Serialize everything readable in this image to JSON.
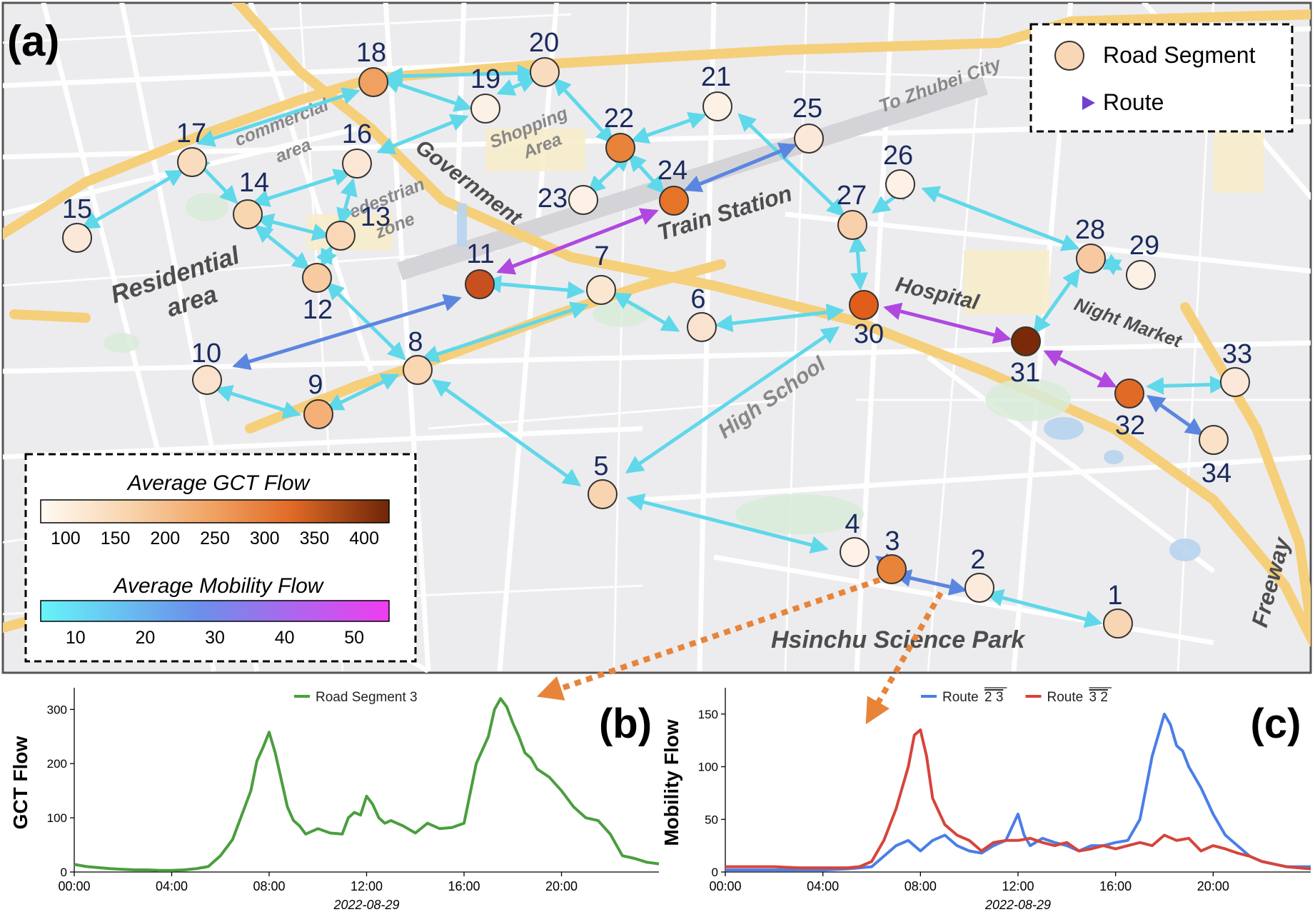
{
  "panel_a": {
    "label": "(a)",
    "legend": {
      "segment_label": "Road Segment",
      "route_label": "Route"
    },
    "area_labels": {
      "commercial_1": "commercial",
      "commercial_2": "area",
      "shopping_1": "Shopping",
      "shopping_2": "Area",
      "government": "Government",
      "train_station": "Train Station",
      "to_zhubei": "To Zhubei City",
      "residential_1": "Residential",
      "residential_2": "area",
      "pedestrian_1": "Pedestrian",
      "pedestrian_2": "zone",
      "hospital": "Hospital",
      "night_market": "Night Market",
      "high_school": "High School",
      "science_park": "Hsinchu Science Park",
      "freeway": "Freeway"
    },
    "gct_scale": {
      "title": "Average GCT Flow",
      "ticks": [
        "100",
        "150",
        "200",
        "250",
        "300",
        "350",
        "400"
      ]
    },
    "mobility_scale": {
      "title": "Average Mobility Flow",
      "ticks": [
        "10",
        "20",
        "30",
        "40",
        "50"
      ]
    },
    "colors": {
      "seg_low": "#fbe7d2",
      "seg_mid": "#f29c5c",
      "seg_high": "#e06a2a",
      "seg_max": "#7a2a08",
      "route_low": "#5ee0f0",
      "route_mid": "#6a8ee8",
      "route_high": "#c050e8"
    }
  },
  "chart_data": [
    {
      "id": "b",
      "type": "line",
      "label": "(b)",
      "ylabel": "GCT Flow",
      "xlabel": "2022-08-29",
      "x_ticks": [
        "00:00",
        "04:00",
        "08:00",
        "12:00",
        "16:00",
        "20:00"
      ],
      "y_ticks": [
        "0",
        "100",
        "200",
        "300"
      ],
      "xlim": [
        0,
        24
      ],
      "ylim": [
        0,
        340
      ],
      "series": [
        {
          "name": "Road Segment 3",
          "color": "#4a9e3e",
          "x": [
            0,
            0.5,
            1,
            1.5,
            2,
            2.5,
            3,
            3.5,
            4,
            4.5,
            5,
            5.5,
            6,
            6.5,
            7,
            7.25,
            7.5,
            7.75,
            8,
            8.25,
            8.5,
            8.75,
            9,
            9.25,
            9.5,
            9.75,
            10,
            10.5,
            11,
            11.25,
            11.5,
            11.75,
            12,
            12.25,
            12.5,
            12.75,
            13,
            13.5,
            14,
            14.5,
            15,
            15.5,
            16,
            16.5,
            17,
            17.25,
            17.5,
            17.75,
            18,
            18.25,
            18.5,
            18.75,
            19,
            19.5,
            20,
            20.5,
            21,
            21.5,
            22,
            22.5,
            23,
            23.5,
            24
          ],
          "y": [
            14,
            10,
            8,
            6,
            5,
            4,
            4,
            3,
            3,
            4,
            6,
            10,
            30,
            60,
            120,
            150,
            205,
            230,
            258,
            220,
            170,
            120,
            95,
            85,
            70,
            75,
            80,
            72,
            70,
            100,
            110,
            105,
            140,
            125,
            100,
            90,
            95,
            85,
            72,
            90,
            80,
            82,
            90,
            200,
            250,
            300,
            320,
            305,
            275,
            250,
            220,
            210,
            190,
            175,
            150,
            120,
            100,
            95,
            70,
            30,
            25,
            18,
            15
          ]
        }
      ]
    },
    {
      "id": "c",
      "type": "line",
      "label": "(c)",
      "ylabel": "Mobility Flow",
      "xlabel": "2022-08-29",
      "x_ticks": [
        "00:00",
        "04:00",
        "08:00",
        "12:00",
        "16:00",
        "20:00"
      ],
      "y_ticks": [
        "0",
        "50",
        "100",
        "150"
      ],
      "xlim": [
        0,
        24
      ],
      "ylim": [
        0,
        175
      ],
      "series": [
        {
          "name": "Route",
          "overline": "2 3",
          "color": "#4a7ee8",
          "x": [
            0,
            1,
            2,
            3,
            4,
            5,
            6,
            6.5,
            7,
            7.5,
            8,
            8.5,
            9,
            9.5,
            10,
            10.5,
            11,
            11.5,
            12,
            12.25,
            12.5,
            13,
            13.5,
            14,
            14.5,
            15,
            15.5,
            16,
            16.5,
            17,
            17.25,
            17.5,
            17.75,
            18,
            18.25,
            18.5,
            18.75,
            19,
            19.5,
            20,
            20.5,
            21,
            21.5,
            22,
            23,
            24
          ],
          "y": [
            2,
            2,
            2,
            2,
            2,
            3,
            5,
            15,
            25,
            30,
            20,
            30,
            35,
            25,
            20,
            18,
            25,
            30,
            55,
            35,
            25,
            32,
            28,
            25,
            20,
            25,
            25,
            28,
            30,
            50,
            80,
            110,
            130,
            150,
            140,
            120,
            115,
            100,
            80,
            55,
            35,
            25,
            15,
            10,
            5,
            5
          ]
        },
        {
          "name": "Route",
          "overline": "3 2",
          "color": "#d6443a",
          "x": [
            0,
            1,
            2,
            3,
            4,
            5,
            5.5,
            6,
            6.5,
            7,
            7.5,
            7.75,
            8,
            8.25,
            8.5,
            9,
            9.5,
            10,
            10.5,
            11,
            11.5,
            12,
            12.5,
            13,
            13.5,
            14,
            14.5,
            15,
            15.5,
            16,
            16.5,
            17,
            17.5,
            18,
            18.5,
            19,
            19.5,
            20,
            20.5,
            21,
            21.5,
            22,
            23,
            24
          ],
          "y": [
            5,
            5,
            5,
            4,
            4,
            4,
            5,
            10,
            30,
            60,
            100,
            130,
            135,
            110,
            70,
            45,
            35,
            30,
            20,
            28,
            30,
            30,
            32,
            28,
            25,
            28,
            20,
            22,
            25,
            22,
            25,
            28,
            25,
            35,
            30,
            32,
            20,
            25,
            22,
            18,
            15,
            10,
            5,
            3
          ]
        }
      ]
    }
  ]
}
